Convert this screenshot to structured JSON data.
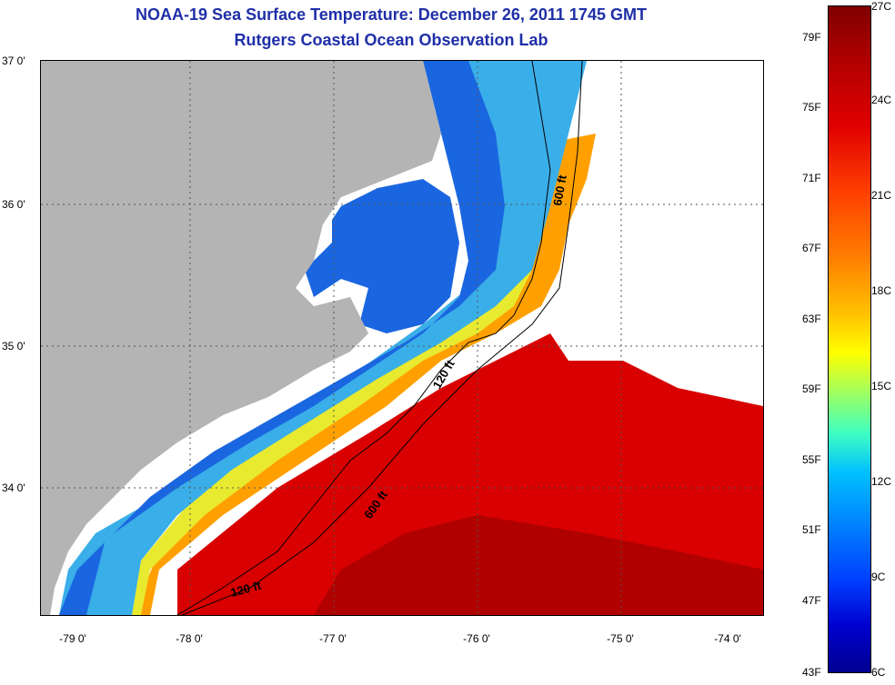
{
  "header": {
    "title_line1": "NOAA-19 Sea Surface Temperature:  December 26, 2011 1745 GMT",
    "title_line2": "Rutgers Coastal Ocean Observation Lab"
  },
  "map": {
    "longitude_labels": [
      "-79 0'",
      "-78 0'",
      "-77 0'",
      "-76 0'",
      "-75 0'",
      "-74 0'"
    ],
    "latitude_labels": [
      "37 0'",
      "36 0'",
      "35 0'",
      "34 0'"
    ],
    "isobath_labels": [
      "600 ft",
      "120 ft",
      "600 ft",
      "120 ft"
    ]
  },
  "colorbar": {
    "fahrenheit_labels": [
      "79F",
      "75F",
      "71F",
      "67F",
      "63F",
      "59F",
      "55F",
      "51F",
      "47F",
      "43F"
    ],
    "celsius_labels": [
      "27C",
      "24C",
      "21C",
      "18C",
      "15C",
      "12C",
      "9C",
      "6C"
    ]
  },
  "colors": {
    "land": "#b4b4b4",
    "title": "#1f2fa8",
    "warm": "#d40000",
    "cold": "#1a66e0"
  }
}
